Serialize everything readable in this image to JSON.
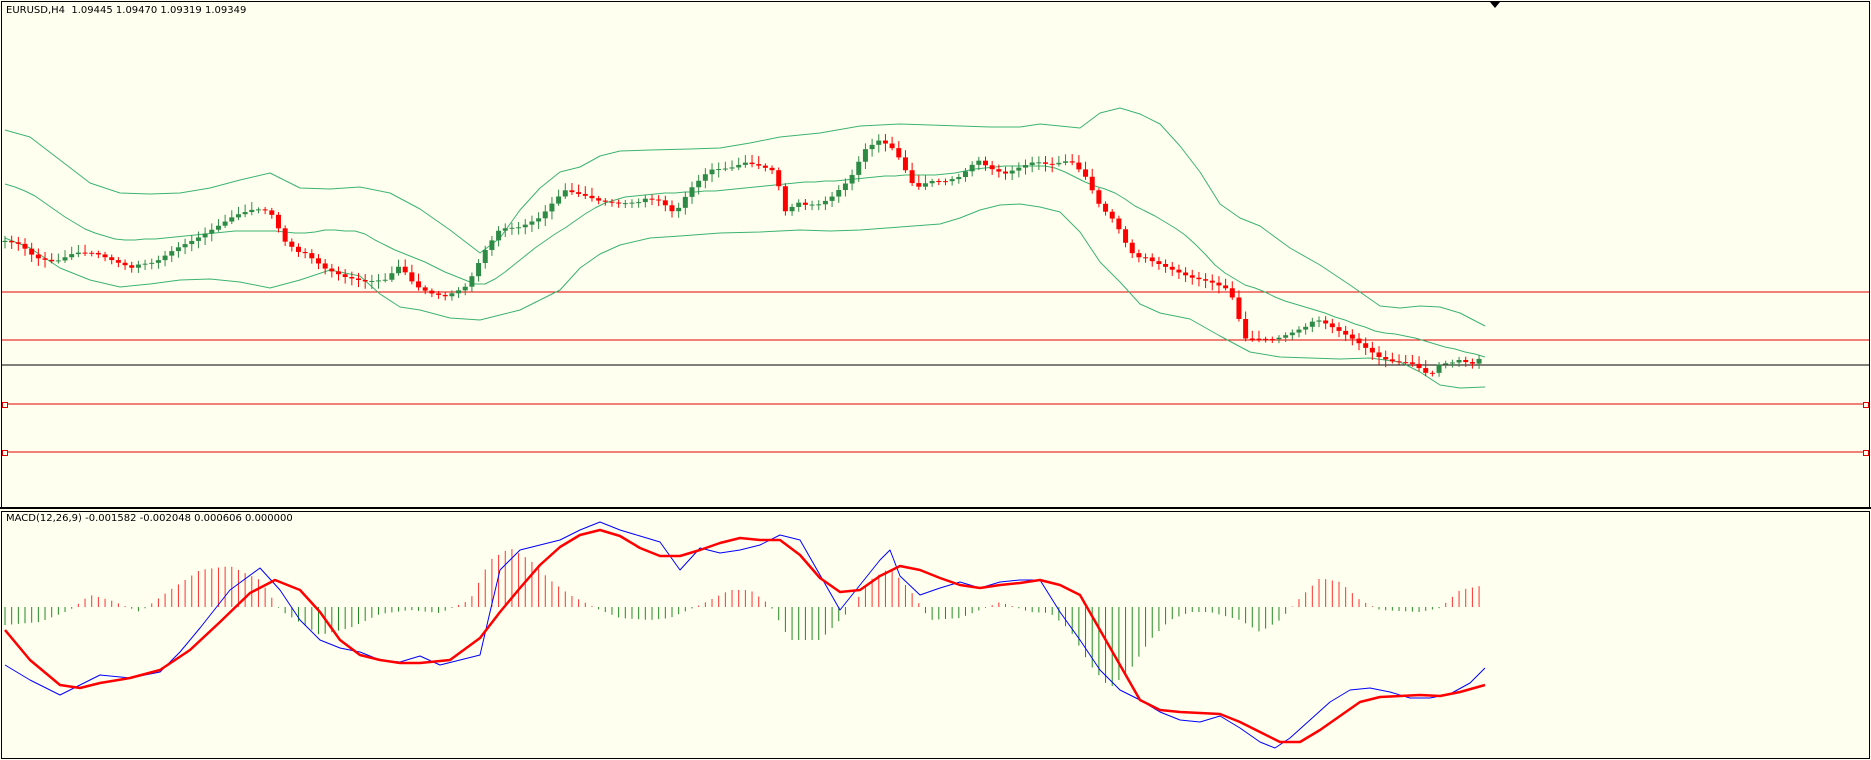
{
  "price_panel": {
    "header": "EURUSD,H4  1.09445 1.09470 1.09319 1.09349"
  },
  "macd_panel": {
    "header": "MACD(12,26,9) -0.001582 -0.002048 0.000606 0.000000"
  },
  "colors": {
    "background": "#fffff0",
    "bull_candle": "#2e8b46",
    "bear_candle": "#ff0000",
    "bollinger": "#3cb371",
    "level_lines": "#e00000",
    "current_price_line": "#000000",
    "macd_line": "#0000ff",
    "signal_line": "#ff0000",
    "histogram_positive": "#ff3030",
    "histogram_negative": "#228b22"
  },
  "chart_data": [
    {
      "type": "candlestick",
      "symbol": "EURUSD",
      "timeframe": "H4",
      "last_bar": {
        "open": 1.09445,
        "high": 1.0947,
        "low": 1.09319,
        "close": 1.09349
      },
      "overlays": [
        "bollinger_bands"
      ],
      "horizontal_lines": 4,
      "grid": false
    },
    {
      "type": "line",
      "indicator": "MACD",
      "params": [
        12,
        26,
        9
      ],
      "values": {
        "macd": -0.001582,
        "signal": -0.002048,
        "histogram": 0.000606,
        "zero": 0.0
      },
      "series": [
        {
          "name": "MACD",
          "color": "#0000ff"
        },
        {
          "name": "Signal",
          "color": "#ff0000"
        }
      ],
      "grid": false
    }
  ]
}
